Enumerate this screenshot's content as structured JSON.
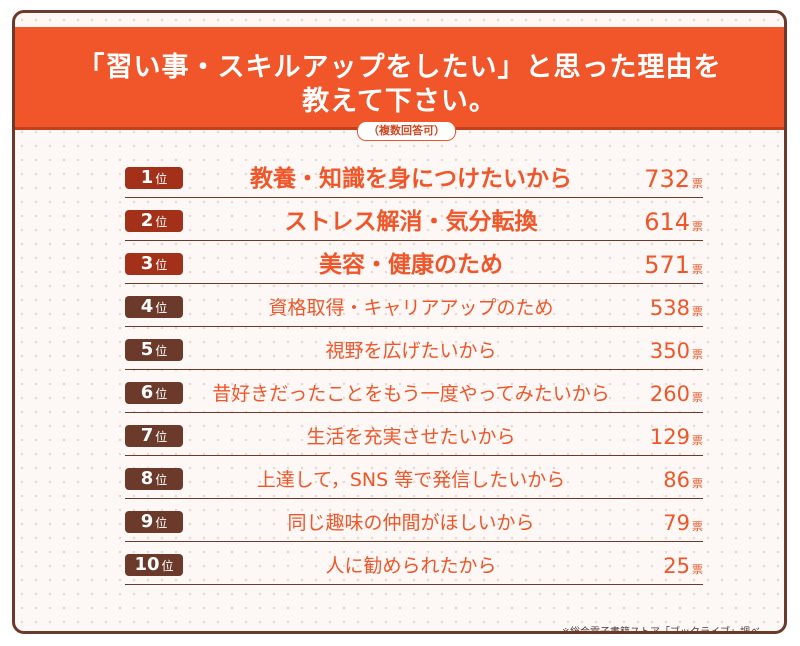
{
  "title_line1": "「習い事・スキルアップをしたい」と思った理由を",
  "title_line2": "教えて下さい。",
  "note": "（複数回答可）",
  "rank_unit": "位",
  "count_unit": "票",
  "source": "※総合電子書籍ストア「ブックライブ」調べ",
  "colors": {
    "accent": "#f0562a",
    "brown": "#6b3a2a",
    "top_badge": "#a3311a"
  },
  "chart_data": {
    "type": "table",
    "title": "「習い事・スキルアップをしたい」と思った理由を教えて下さい。",
    "columns": [
      "rank",
      "reason",
      "votes"
    ],
    "rows": [
      {
        "rank": "1",
        "reason": "教養・知識を身につけたいから",
        "votes": 732
      },
      {
        "rank": "2",
        "reason": "ストレス解消・気分転換",
        "votes": 614
      },
      {
        "rank": "3",
        "reason": "美容・健康のため",
        "votes": 571
      },
      {
        "rank": "4",
        "reason": "資格取得・キャリアアップのため",
        "votes": 538
      },
      {
        "rank": "5",
        "reason": "視野を広げたいから",
        "votes": 350
      },
      {
        "rank": "6",
        "reason": "昔好きだったことをもう一度やってみたいから",
        "votes": 260
      },
      {
        "rank": "7",
        "reason": "生活を充実させたいから",
        "votes": 129
      },
      {
        "rank": "8",
        "reason": "上達して，SNS 等で発信したいから",
        "votes": 86
      },
      {
        "rank": "9",
        "reason": "同じ趣味の仲間がほしいから",
        "votes": 79
      },
      {
        "rank": "10",
        "reason": "人に勧められたから",
        "votes": 25
      }
    ]
  }
}
